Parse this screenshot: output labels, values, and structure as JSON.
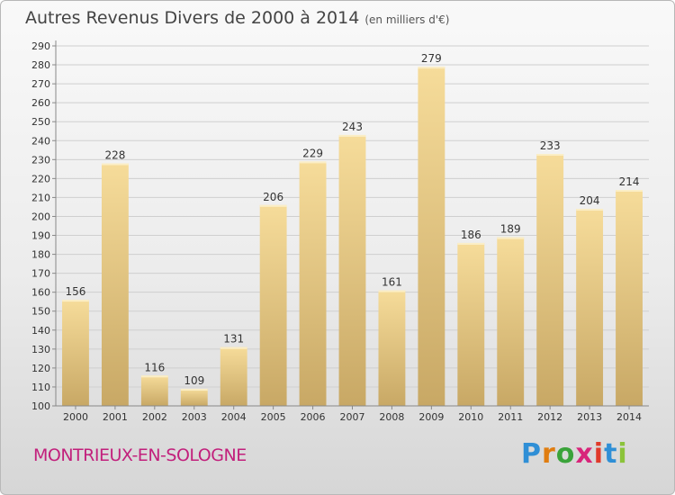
{
  "header": {
    "title": "Autres Revenus Divers de 2000 à 2014",
    "subtitle": "(en milliers d'€)"
  },
  "footer": {
    "location": "MONTRIEUX-EN-SOLOGNE",
    "brand": "Proxiti",
    "brand_colors": [
      "#2f8fd6",
      "#e07d10",
      "#3aa33a",
      "#d8257a",
      "#e03a2a",
      "#2f8fd6",
      "#8bc33a"
    ]
  },
  "colors": {
    "bar_light": "#f6dc9a",
    "bar_dark": "#c8a865",
    "grid": "#cfcfcf",
    "axis_text": "#333333",
    "location_color": "#c2207c"
  },
  "chart_data": {
    "type": "bar",
    "title": "Autres Revenus Divers de 2000 à 2014",
    "subtitle": "(en milliers d'€)",
    "categories": [
      "2000",
      "2001",
      "2002",
      "2003",
      "2004",
      "2005",
      "2006",
      "2007",
      "2008",
      "2009",
      "2010",
      "2011",
      "2012",
      "2013",
      "2014"
    ],
    "values": [
      156,
      228,
      116,
      109,
      131,
      206,
      229,
      243,
      161,
      279,
      186,
      189,
      233,
      204,
      214
    ],
    "ylim": [
      100,
      290
    ],
    "yticks": [
      100,
      110,
      120,
      130,
      140,
      150,
      160,
      170,
      180,
      190,
      200,
      210,
      220,
      230,
      240,
      250,
      260,
      270,
      280,
      290
    ],
    "grid": true,
    "data_labels": true
  }
}
